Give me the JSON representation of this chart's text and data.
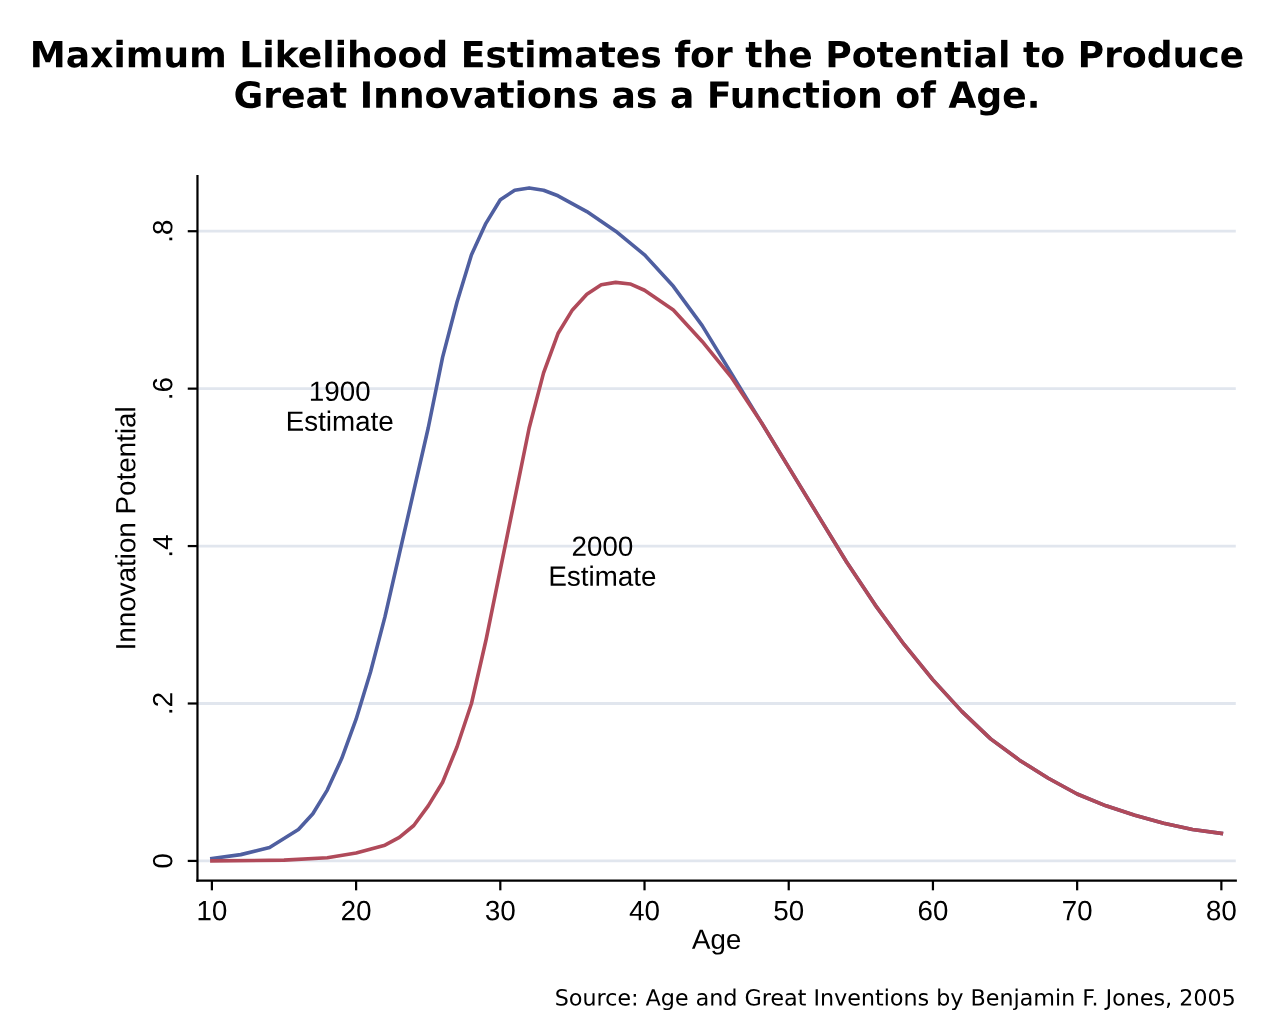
{
  "chart_data": {
    "type": "line",
    "title": "Maximum Likelihood Estimates for the Potential to Produce\nGreat Innovations as a Function of Age.",
    "xlabel": "Age",
    "ylabel": "Innovation Potential",
    "xlim": [
      9,
      81
    ],
    "ylim": [
      -0.025,
      0.87
    ],
    "xticks": [
      10,
      20,
      30,
      40,
      50,
      60,
      70,
      80
    ],
    "yticks": [
      {
        "value": 0,
        "label": "0"
      },
      {
        "value": 0.2,
        "label": ".2"
      },
      {
        "value": 0.4,
        "label": ".4"
      },
      {
        "value": 0.6,
        "label": ".6"
      },
      {
        "value": 0.8,
        "label": ".8"
      }
    ],
    "grid": "y",
    "legend": false,
    "series": [
      {
        "color": "#4f5fa0",
        "x": [
          10,
          12,
          14,
          16,
          17,
          18,
          19,
          20,
          21,
          22,
          23,
          24,
          25,
          26,
          27,
          28,
          29,
          30,
          31,
          32,
          33,
          34,
          36,
          38,
          40,
          42,
          44,
          46,
          48,
          50,
          52,
          54,
          56,
          58,
          60,
          62,
          64,
          66,
          68,
          70,
          72,
          74,
          76,
          78,
          80
        ],
        "values": [
          0.003,
          0.008,
          0.017,
          0.04,
          0.06,
          0.09,
          0.13,
          0.18,
          0.24,
          0.31,
          0.39,
          0.47,
          0.55,
          0.64,
          0.71,
          0.77,
          0.81,
          0.84,
          0.852,
          0.855,
          0.852,
          0.845,
          0.825,
          0.8,
          0.77,
          0.73,
          0.68,
          0.62,
          0.56,
          0.5,
          0.44,
          0.38,
          0.325,
          0.275,
          0.23,
          0.19,
          0.155,
          0.128,
          0.105,
          0.085,
          0.07,
          0.058,
          0.048,
          0.04,
          0.035
        ]
      },
      {
        "color": "#b04a5a",
        "x": [
          10,
          15,
          18,
          20,
          22,
          23,
          24,
          25,
          26,
          27,
          28,
          29,
          30,
          31,
          32,
          33,
          34,
          35,
          36,
          37,
          38,
          39,
          40,
          42,
          44,
          46,
          48,
          50,
          52,
          54,
          56,
          58,
          60,
          62,
          64,
          66,
          68,
          70,
          72,
          74,
          76,
          78,
          80
        ],
        "values": [
          0,
          0.001,
          0.004,
          0.01,
          0.02,
          0.03,
          0.045,
          0.07,
          0.1,
          0.145,
          0.2,
          0.28,
          0.37,
          0.46,
          0.55,
          0.62,
          0.67,
          0.7,
          0.72,
          0.732,
          0.735,
          0.733,
          0.725,
          0.7,
          0.66,
          0.615,
          0.56,
          0.5,
          0.44,
          0.38,
          0.325,
          0.275,
          0.23,
          0.19,
          0.155,
          0.128,
          0.105,
          0.085,
          0.07,
          0.058,
          0.048,
          0.04,
          0.035
        ]
      }
    ],
    "annotations": [
      "1900\nEstimate",
      "2000\nEstimate",
      "Source: Age and Great Inventions by Benjamin F. Jones, 2005"
    ]
  }
}
